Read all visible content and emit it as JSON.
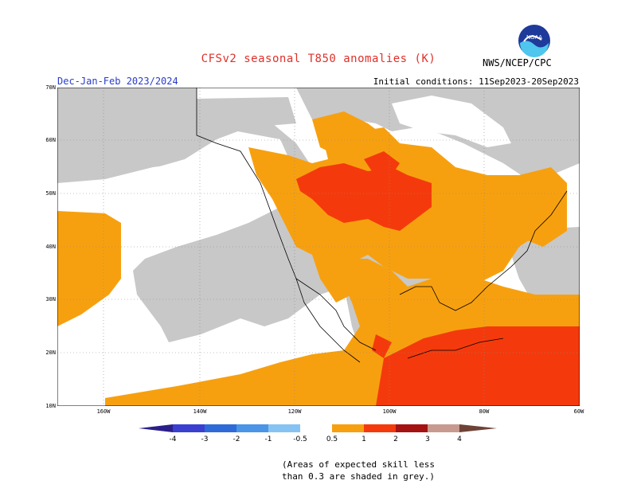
{
  "header": {
    "title": "CFSv2 seasonal T850 anomalies (K)",
    "period": "Dec-Jan-Feb 2023/2024",
    "initial_conditions": "Initial conditions: 11Sep2023-20Sep2023",
    "agency": "NWS/NCEP/CPC",
    "logo_text": "NOAA"
  },
  "map": {
    "lat_labels": [
      "70N",
      "60N",
      "50N",
      "40N",
      "30N",
      "20N",
      "10N"
    ],
    "lon_labels": [
      "160W",
      "140W",
      "120W",
      "100W",
      "80W",
      "60W"
    ],
    "extent": {
      "lon": [
        -170,
        -60
      ],
      "lat": [
        10,
        70
      ]
    },
    "grid_lines": true
  },
  "legend": {
    "labels": [
      "-4",
      "-3",
      "-2",
      "-1",
      "-0.5",
      "0.5",
      "1",
      "2",
      "3",
      "4"
    ],
    "colors": {
      "lt_-4": "#2a1f8a",
      "-4_-3": "#3a3fd0",
      "-3_-2": "#2f6bd8",
      "-2_-1": "#4a95e6",
      "-1_-0.5": "#87c3f2",
      "-0.5_0.5": "#ffffff",
      "0.5_1": "#f7a00f",
      "1_2": "#f43a0c",
      "2_3": "#a51212",
      "3_4": "#c89a8f",
      "gt_4": "#6e4236"
    },
    "low_skill_color": "#c8c8c8"
  },
  "note": {
    "line1": "(Areas of expected skill less",
    "line2": "than 0.3 are shaded in grey.)"
  }
}
